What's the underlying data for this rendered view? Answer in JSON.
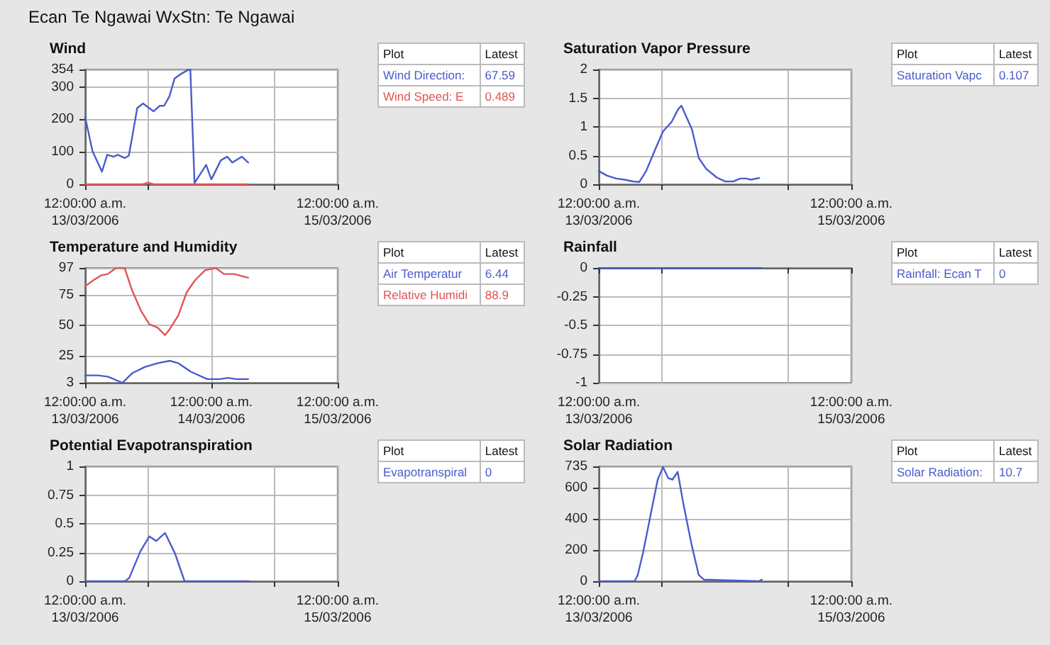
{
  "chart_data": [
    {
      "type": "line",
      "subtitle": "Ecan Te Ngawai WxStn: Te Ngawai",
      "title": "Wind",
      "xlim": [
        "2006-03-13T00:00",
        "2006-03-15T00:00"
      ],
      "xticks": [
        {
          "value": "2006-03-13T00:00",
          "label": "12:00:00 a.m.\n13/03/2006"
        },
        {
          "value": "2006-03-13T12:00",
          "label": null
        },
        {
          "value": "2006-03-14T12:00",
          "label": null
        },
        {
          "value": "2006-03-15T00:00",
          "label": "12:00:00 a.m.\n15/03/2006"
        }
      ],
      "ylim": [
        0,
        354
      ],
      "yticks": [
        0,
        100,
        200,
        300,
        354
      ],
      "grid": true,
      "legend": "right",
      "legend_title": "Plot",
      "annotations": [
        "Latest",
        "67.59",
        "0.489"
      ],
      "series": [
        {
          "name": "Wind Direction:",
          "color": "#4a5ccc",
          "x": [
            "2006-03-13T00:00",
            "2006-03-13T01:24",
            "2006-03-13T03:12",
            "2006-03-13T04:12",
            "2006-03-13T05:24",
            "2006-03-13T06:12",
            "2006-03-13T07:30",
            "2006-03-13T08:18",
            "2006-03-13T09:00",
            "2006-03-13T09:54",
            "2006-03-13T11:00",
            "2006-03-13T13:00",
            "2006-03-13T14:12",
            "2006-03-13T15:00",
            "2006-03-13T16:00",
            "2006-03-13T17:00",
            "2006-03-13T18:12",
            "2006-03-13T19:24",
            "2006-03-13T20:00",
            "2006-03-13T20:48",
            "2006-03-13T23:00",
            "2006-03-14T00:00",
            "2006-03-14T01:48",
            "2006-03-14T03:00",
            "2006-03-14T04:00",
            "2006-03-14T05:48",
            "2006-03-14T07:00"
          ],
          "values": [
            207,
            102,
            39,
            91,
            85,
            91,
            81,
            88,
            151,
            235,
            249,
            225,
            242,
            242,
            270,
            326,
            340,
            351,
            354,
            4,
            60,
            15,
            74,
            85,
            67,
            85,
            67
          ]
        },
        {
          "name": "Wind Speed: E",
          "color": "#e05555",
          "x": [
            "2006-03-13T00:00",
            "2006-03-13T11:00",
            "2006-03-13T12:00",
            "2006-03-13T13:00",
            "2006-03-14T07:00"
          ],
          "values": [
            0,
            0,
            5,
            0,
            0
          ]
        }
      ]
    },
    {
      "type": "line",
      "title": "Saturation Vapor Pressure",
      "xlim": [
        "2006-03-13T00:00",
        "2006-03-15T00:00"
      ],
      "xticks": [
        {
          "value": "2006-03-13T00:00",
          "label": "12:00:00 a.m.\n13/03/2006"
        },
        {
          "value": "2006-03-13T12:00",
          "label": null
        },
        {
          "value": "2006-03-14T12:00",
          "label": null
        },
        {
          "value": "2006-03-15T00:00",
          "label": "12:00:00 a.m.\n15/03/2006"
        }
      ],
      "ylim": [
        0,
        2
      ],
      "yticks": [
        0,
        0.5,
        1,
        1.5,
        2
      ],
      "grid": true,
      "legend": "right",
      "legend_title": "Plot",
      "annotations": [
        "Latest",
        "0.107"
      ],
      "series": [
        {
          "name": "Saturation Vapc",
          "color": "#4a5ccc",
          "x": [
            "2006-03-13T00:00",
            "2006-03-13T01:36",
            "2006-03-13T03:18",
            "2006-03-13T04:54",
            "2006-03-13T06:30",
            "2006-03-13T07:42",
            "2006-03-13T09:00",
            "2006-03-13T10:36",
            "2006-03-13T12:12",
            "2006-03-13T13:48",
            "2006-03-13T15:06",
            "2006-03-13T15:42",
            "2006-03-13T17:42",
            "2006-03-13T19:00",
            "2006-03-13T20:24",
            "2006-03-13T22:24",
            "2006-03-14T00:00",
            "2006-03-14T01:36",
            "2006-03-14T02:54",
            "2006-03-14T04:06",
            "2006-03-14T04:54",
            "2006-03-14T06:30"
          ],
          "values": [
            0.23,
            0.15,
            0.1,
            0.08,
            0.05,
            0.04,
            0.23,
            0.58,
            0.92,
            1.08,
            1.31,
            1.37,
            0.96,
            0.46,
            0.27,
            0.12,
            0.05,
            0.05,
            0.1,
            0.1,
            0.08,
            0.11
          ]
        }
      ]
    },
    {
      "type": "line",
      "title": "Temperature and Humidity",
      "xlim": [
        "2006-03-13T00:00",
        "2006-03-15T00:00"
      ],
      "xticks": [
        {
          "value": "2006-03-13T00:00",
          "label": "12:00:00 a.m.\n13/03/2006"
        },
        {
          "value": "2006-03-14T00:00",
          "label": "12:00:00 a.m.\n14/03/2006"
        },
        {
          "value": "2006-03-15T00:00",
          "label": "12:00:00 a.m.\n15/03/2006"
        }
      ],
      "ylim": [
        3,
        97
      ],
      "yticks": [
        3,
        25,
        50,
        75,
        97
      ],
      "grid": true,
      "legend": "right",
      "legend_title": "Plot",
      "annotations": [
        "Latest",
        "6.44",
        "88.9"
      ],
      "series": [
        {
          "name": "Air Temperatur",
          "color": "#4a5ccc",
          "x": [
            "2006-03-13T00:00",
            "2006-03-13T02:24",
            "2006-03-13T04:18",
            "2006-03-13T07:06",
            "2006-03-13T09:00",
            "2006-03-13T11:24",
            "2006-03-13T13:48",
            "2006-03-13T16:06",
            "2006-03-13T17:42",
            "2006-03-13T20:06",
            "2006-03-13T23:12",
            "2006-03-14T01:36",
            "2006-03-14T03:12",
            "2006-03-14T04:42",
            "2006-03-14T07:00"
          ],
          "values": [
            9,
            9,
            8,
            3,
            11,
            16,
            19,
            21,
            19,
            12,
            6,
            6,
            7,
            6,
            6
          ]
        },
        {
          "name": "Relative Humidi",
          "color": "#e05555",
          "x": [
            "2006-03-13T00:00",
            "2006-03-13T01:36",
            "2006-03-13T03:06",
            "2006-03-13T04:18",
            "2006-03-13T05:54",
            "2006-03-13T07:30",
            "2006-03-13T08:54",
            "2006-03-13T10:36",
            "2006-03-13T12:12",
            "2006-03-13T13:48",
            "2006-03-13T15:12",
            "2006-03-13T16:06",
            "2006-03-13T17:42",
            "2006-03-13T19:18",
            "2006-03-13T20:54",
            "2006-03-13T22:48",
            "2006-03-14T00:48",
            "2006-03-14T02:24",
            "2006-03-14T04:18",
            "2006-03-14T07:00"
          ],
          "values": [
            82,
            87,
            91,
            92,
            97,
            97,
            79,
            62,
            51,
            48,
            42,
            47,
            58,
            77,
            87,
            95,
            97,
            92,
            92,
            89
          ]
        }
      ]
    },
    {
      "type": "line",
      "title": "Rainfall",
      "xlim": [
        "2006-03-13T00:00",
        "2006-03-15T00:00"
      ],
      "xticks": [
        {
          "value": "2006-03-13T00:00",
          "label": "12:00:00 a.m.\n13/03/2006"
        },
        {
          "value": "2006-03-13T12:00",
          "label": null
        },
        {
          "value": "2006-03-14T12:00",
          "label": null
        },
        {
          "value": "2006-03-15T00:00",
          "label": "12:00:00 a.m.\n15/03/2006"
        }
      ],
      "ylim": [
        -1,
        0
      ],
      "yticks": [
        -1,
        -0.75,
        -0.5,
        -0.25,
        0
      ],
      "grid": true,
      "legend": "right",
      "legend_title": "Plot",
      "annotations": [
        "Latest",
        "0"
      ],
      "series": [
        {
          "name": "Rainfall: Ecan T",
          "color": "#4a5ccc",
          "x": [
            "2006-03-13T00:00",
            "2006-03-13T08:00",
            "2006-03-13T16:00",
            "2006-03-14T00:00",
            "2006-03-14T07:00"
          ],
          "values": [
            0,
            0,
            0,
            0,
            0
          ]
        }
      ]
    },
    {
      "type": "line",
      "title": "Potential Evapotranspiration",
      "xlim": [
        "2006-03-13T00:00",
        "2006-03-15T00:00"
      ],
      "xticks": [
        {
          "value": "2006-03-13T00:00",
          "label": "12:00:00 a.m.\n13/03/2006"
        },
        {
          "value": "2006-03-13T12:00",
          "label": null
        },
        {
          "value": "2006-03-14T12:00",
          "label": null
        },
        {
          "value": "2006-03-15T00:00",
          "label": "12:00:00 a.m.\n15/03/2006"
        }
      ],
      "ylim": [
        0,
        1
      ],
      "yticks": [
        0,
        0.25,
        0.5,
        0.75,
        1
      ],
      "grid": true,
      "legend": "right",
      "legend_title": "Plot",
      "annotations": [
        "Latest",
        "0"
      ],
      "series": [
        {
          "name": "Evapotranspiral",
          "color": "#4a5ccc",
          "x": [
            "2006-03-13T00:00",
            "2006-03-13T07:36",
            "2006-03-13T08:24",
            "2006-03-13T10:30",
            "2006-03-13T12:12",
            "2006-03-13T13:30",
            "2006-03-13T15:12",
            "2006-03-13T17:06",
            "2006-03-13T18:54",
            "2006-03-14T07:12"
          ],
          "values": [
            0,
            0,
            0.03,
            0.26,
            0.39,
            0.35,
            0.42,
            0.24,
            0,
            0
          ]
        }
      ]
    },
    {
      "type": "line",
      "title": "Solar Radiation",
      "xlim": [
        "2006-03-13T00:00",
        "2006-03-15T00:00"
      ],
      "xticks": [
        {
          "value": "2006-03-13T00:00",
          "label": "12:00:00 a.m.\n13/03/2006"
        },
        {
          "value": "2006-03-13T12:00",
          "label": null
        },
        {
          "value": "2006-03-14T12:00",
          "label": null
        },
        {
          "value": "2006-03-15T00:00",
          "label": "12:00:00 a.m.\n15/03/2006"
        }
      ],
      "ylim": [
        0,
        735
      ],
      "yticks": [
        0,
        200,
        400,
        600,
        735
      ],
      "grid": true,
      "legend": "right",
      "legend_title": "Plot",
      "annotations": [
        "Latest",
        "10.7"
      ],
      "series": [
        {
          "name": "Solar Radiation:",
          "color": "#4a5ccc",
          "x": [
            "2006-03-13T00:00",
            "2006-03-13T06:48",
            "2006-03-13T07:24",
            "2006-03-13T08:24",
            "2006-03-13T10:00",
            "2006-03-13T11:12",
            "2006-03-13T12:12",
            "2006-03-13T13:12",
            "2006-03-13T14:00",
            "2006-03-13T15:00",
            "2006-03-13T16:00",
            "2006-03-13T17:36",
            "2006-03-13T19:00",
            "2006-03-13T20:00",
            "2006-03-14T06:24",
            "2006-03-14T07:00"
          ],
          "values": [
            0,
            0,
            40,
            180,
            450,
            650,
            730,
            660,
            650,
            700,
            510,
            240,
            40,
            10,
            0,
            10
          ]
        }
      ]
    }
  ]
}
